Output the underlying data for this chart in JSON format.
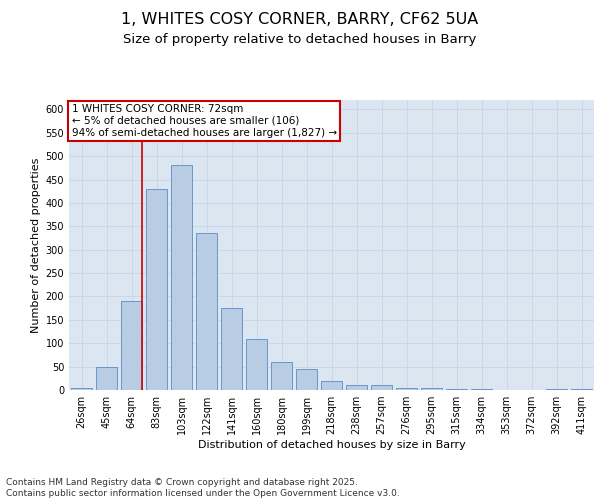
{
  "title1": "1, WHITES COSY CORNER, BARRY, CF62 5UA",
  "title2": "Size of property relative to detached houses in Barry",
  "xlabel": "Distribution of detached houses by size in Barry",
  "ylabel": "Number of detached properties",
  "categories": [
    "26sqm",
    "45sqm",
    "64sqm",
    "83sqm",
    "103sqm",
    "122sqm",
    "141sqm",
    "160sqm",
    "180sqm",
    "199sqm",
    "218sqm",
    "238sqm",
    "257sqm",
    "276sqm",
    "295sqm",
    "315sqm",
    "334sqm",
    "353sqm",
    "372sqm",
    "392sqm",
    "411sqm"
  ],
  "values": [
    5,
    50,
    190,
    430,
    480,
    335,
    175,
    110,
    60,
    45,
    20,
    10,
    10,
    5,
    5,
    3,
    2,
    1,
    1,
    3,
    2
  ],
  "bar_color": "#b8cce4",
  "bar_edge_color": "#5b8dc8",
  "bar_edge_width": 0.6,
  "grid_color": "#c8d8ea",
  "bg_color": "#dce6f1",
  "annotation_line1": "1 WHITES COSY CORNER: 72sqm",
  "annotation_line2": "← 5% of detached houses are smaller (106)",
  "annotation_line3": "94% of semi-detached houses are larger (1,827) →",
  "annotation_box_color": "#ffffff",
  "annotation_box_edge_color": "#cc0000",
  "vline_color": "#cc0000",
  "ylim": [
    0,
    620
  ],
  "yticks": [
    0,
    50,
    100,
    150,
    200,
    250,
    300,
    350,
    400,
    450,
    500,
    550,
    600
  ],
  "footer_text": "Contains HM Land Registry data © Crown copyright and database right 2025.\nContains public sector information licensed under the Open Government Licence v3.0.",
  "title_fontsize": 11.5,
  "subtitle_fontsize": 9.5,
  "axis_label_fontsize": 8,
  "tick_fontsize": 7,
  "annotation_fontsize": 7.5,
  "footer_fontsize": 6.5
}
